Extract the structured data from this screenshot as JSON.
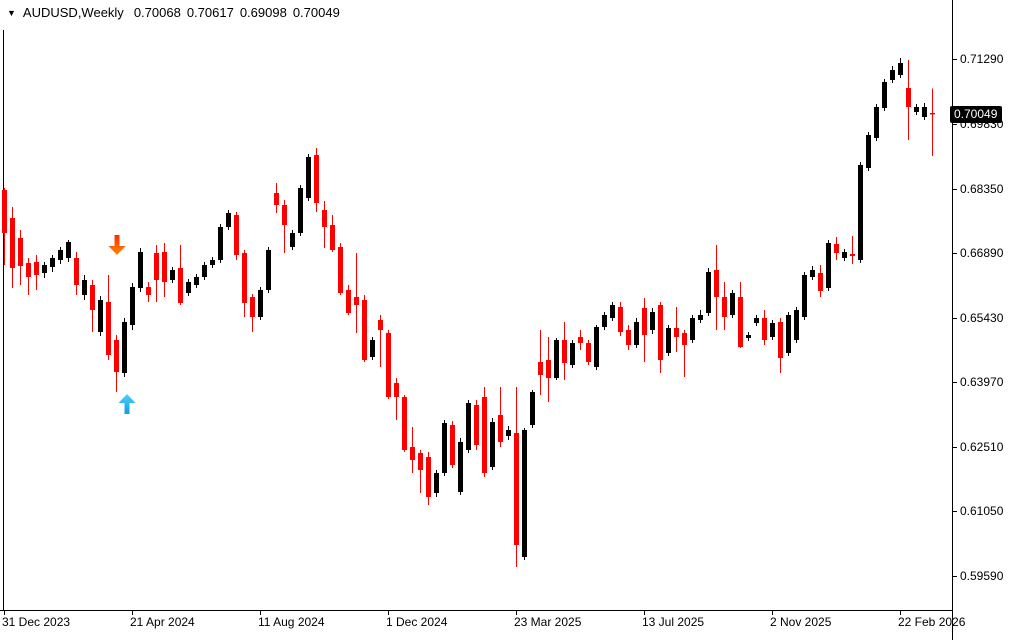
{
  "header": {
    "dropdown_glyph": "▼",
    "symbol_period": "AUDUSD,Weekly",
    "open": "0.70068",
    "high": "0.70617",
    "low": "0.69098",
    "close": "0.70049"
  },
  "price_axis": {
    "labels": [
      "0.71290",
      "0.69830",
      "0.68350",
      "0.66890",
      "0.65430",
      "0.63970",
      "0.62510",
      "0.61050",
      "0.59590"
    ],
    "current_price": "0.70049"
  },
  "time_axis": {
    "ticks": [
      {
        "label": "31 Dec 2023",
        "candle_index": 0
      },
      {
        "label": "21 Apr 2024",
        "candle_index": 16
      },
      {
        "label": "11 Aug 2024",
        "candle_index": 32
      },
      {
        "label": "1 Dec 2024",
        "candle_index": 48
      },
      {
        "label": "23 Mar 2025",
        "candle_index": 64
      },
      {
        "label": "13 Jul 2025",
        "candle_index": 80
      },
      {
        "label": "2 Nov 2025",
        "candle_index": 96
      },
      {
        "label": "22 Feb 2026",
        "candle_index": 112
      }
    ]
  },
  "colors": {
    "background": "#FFFFFF",
    "bull_candle": "#000000",
    "bear_candle": "#FF0000",
    "axis": "#000000",
    "arrow_down_top": "#FF2A00",
    "arrow_down_bottom": "#FF8A00",
    "arrow_up_top": "#4FD0F7",
    "arrow_up_bottom": "#0E9FE0",
    "price_tag_bg": "#000000",
    "price_tag_text": "#FFFFFF"
  },
  "chart_data": {
    "type": "candlestick",
    "title": "AUDUSD Weekly",
    "symbol": "AUDUSD",
    "timeframe": "Weekly",
    "legend_position": "none",
    "grid": false,
    "y_axis_side": "right",
    "y_axis_tick_prices": [
      0.7129,
      0.6983,
      0.6835,
      0.6689,
      0.6543,
      0.6397,
      0.6251,
      0.6105,
      0.5959
    ],
    "y_range_visible": [
      0.588,
      0.72
    ],
    "x_tick_labels": [
      "31 Dec 2023",
      "21 Apr 2024",
      "11 Aug 2024",
      "1 Dec 2024",
      "23 Mar 2025",
      "13 Jul 2025",
      "2 Nov 2025",
      "22 Feb 2026"
    ],
    "x_tick_candle_indices": [
      0,
      16,
      32,
      48,
      64,
      80,
      96,
      112
    ],
    "last_candle_ohlc": {
      "open": 0.70068,
      "high": 0.70617,
      "low": 0.69098,
      "close": 0.70049
    },
    "candles_format": [
      "open",
      "high",
      "low",
      "close"
    ],
    "candles": [
      [
        0.68325,
        0.6837,
        0.66628,
        0.67352
      ],
      [
        0.67691,
        0.6794,
        0.66108,
        0.6656
      ],
      [
        0.67239,
        0.6742,
        0.66176,
        0.66606
      ],
      [
        0.66673,
        0.66787,
        0.6595,
        0.66357
      ],
      [
        0.66696,
        0.66854,
        0.66063,
        0.66402
      ],
      [
        0.66447,
        0.66696,
        0.66334,
        0.66628
      ],
      [
        0.66583,
        0.66854,
        0.6647,
        0.66787
      ],
      [
        0.66741,
        0.67036,
        0.66651,
        0.66968
      ],
      [
        0.66787,
        0.67194,
        0.66696,
        0.67149
      ],
      [
        0.66787,
        0.66922,
        0.6595,
        0.66176
      ],
      [
        0.6595,
        0.66402,
        0.65837,
        0.66289
      ],
      [
        0.66176,
        0.66289,
        0.65112,
        0.65611
      ],
      [
        0.65112,
        0.65927,
        0.65021,
        0.65837
      ],
      [
        0.65791,
        0.66402,
        0.64478,
        0.64591
      ],
      [
        0.64931,
        0.65044,
        0.63754,
        0.64206
      ],
      [
        0.64184,
        0.65429,
        0.64093,
        0.65339
      ],
      [
        0.65271,
        0.66221,
        0.65157,
        0.6613
      ],
      [
        0.66108,
        0.67013,
        0.66018,
        0.66922
      ],
      [
        0.6613,
        0.66244,
        0.65791,
        0.6595
      ],
      [
        0.669,
        0.67081,
        0.65791,
        0.66289
      ],
      [
        0.66922,
        0.67126,
        0.65904,
        0.66244
      ],
      [
        0.66289,
        0.66583,
        0.66221,
        0.66515
      ],
      [
        0.6656,
        0.67081,
        0.65724,
        0.65769
      ],
      [
        0.65995,
        0.66312,
        0.65927,
        0.66244
      ],
      [
        0.66176,
        0.66425,
        0.66108,
        0.66357
      ],
      [
        0.66357,
        0.66696,
        0.66289,
        0.66628
      ],
      [
        0.66628,
        0.66809,
        0.6656,
        0.66741
      ],
      [
        0.66741,
        0.67556,
        0.66673,
        0.67488
      ],
      [
        0.67488,
        0.67872,
        0.6742,
        0.67805
      ],
      [
        0.67759,
        0.67827,
        0.66741,
        0.66854
      ],
      [
        0.669,
        0.66968,
        0.65452,
        0.65769
      ],
      [
        0.65904,
        0.65972,
        0.65112,
        0.65452
      ],
      [
        0.65452,
        0.6613,
        0.65384,
        0.66063
      ],
      [
        0.66063,
        0.67036,
        0.65995,
        0.66968
      ],
      [
        0.68257,
        0.68484,
        0.67805,
        0.67986
      ],
      [
        0.67986,
        0.68099,
        0.669,
        0.67533
      ],
      [
        0.67036,
        0.6742,
        0.66968,
        0.67352
      ],
      [
        0.67352,
        0.68438,
        0.67284,
        0.6837
      ],
      [
        0.68144,
        0.6914,
        0.68076,
        0.69072
      ],
      [
        0.69117,
        0.69276,
        0.67827,
        0.68031
      ],
      [
        0.67872,
        0.68076,
        0.67013,
        0.67488
      ],
      [
        0.67533,
        0.67759,
        0.66922,
        0.66968
      ],
      [
        0.67036,
        0.67126,
        0.6595,
        0.65995
      ],
      [
        0.66063,
        0.66176,
        0.65497,
        0.65543
      ],
      [
        0.65904,
        0.669,
        0.65089,
        0.65724
      ],
      [
        0.65837,
        0.6595,
        0.64433,
        0.64478
      ],
      [
        0.64546,
        0.64999,
        0.64478,
        0.64931
      ],
      [
        0.65384,
        0.65497,
        0.6432,
        0.65157
      ],
      [
        0.65089,
        0.65157,
        0.63595,
        0.63641
      ],
      [
        0.63958,
        0.64071,
        0.6312,
        0.63641
      ],
      [
        0.63641,
        0.63686,
        0.62395,
        0.6244
      ],
      [
        0.62508,
        0.62961,
        0.61919,
        0.62214
      ],
      [
        0.62372,
        0.6244,
        0.61467,
        0.61987
      ],
      [
        0.62282,
        0.62395,
        0.61195,
        0.61376
      ],
      [
        0.61467,
        0.61987,
        0.61376,
        0.61919
      ],
      [
        0.61919,
        0.6312,
        0.61852,
        0.63052
      ],
      [
        0.63007,
        0.63097,
        0.62033,
        0.62101
      ],
      [
        0.61489,
        0.62712,
        0.61421,
        0.62621
      ],
      [
        0.6244,
        0.63573,
        0.62372,
        0.63505
      ],
      [
        0.6346,
        0.63573,
        0.6244,
        0.62553
      ],
      [
        0.63641,
        0.63867,
        0.61829,
        0.61919
      ],
      [
        0.62055,
        0.63165,
        0.61987,
        0.63075
      ],
      [
        0.63233,
        0.63867,
        0.62508,
        0.62621
      ],
      [
        0.62757,
        0.62984,
        0.62667,
        0.62893
      ],
      [
        0.62825,
        0.63867,
        0.59792,
        0.6029
      ],
      [
        0.60018,
        0.62939,
        0.5995,
        0.62893
      ],
      [
        0.63007,
        0.63799,
        0.62939,
        0.63754
      ],
      [
        0.64433,
        0.65157,
        0.63686,
        0.64139
      ],
      [
        0.64478,
        0.64999,
        0.63528,
        0.64071
      ],
      [
        0.64071,
        0.64976,
        0.64025,
        0.64931
      ],
      [
        0.64931,
        0.65339,
        0.64025,
        0.6441
      ],
      [
        0.64365,
        0.64931,
        0.64297,
        0.64863
      ],
      [
        0.64999,
        0.65157,
        0.64705,
        0.64863
      ],
      [
        0.64863,
        0.64931,
        0.64365,
        0.64433
      ],
      [
        0.6432,
        0.65271,
        0.64252,
        0.65225
      ],
      [
        0.65225,
        0.65565,
        0.65157,
        0.65497
      ],
      [
        0.65429,
        0.65791,
        0.65361,
        0.65724
      ],
      [
        0.65678,
        0.65791,
        0.65021,
        0.65112
      ],
      [
        0.65157,
        0.65271,
        0.64705,
        0.64818
      ],
      [
        0.64818,
        0.65429,
        0.6475,
        0.65339
      ],
      [
        0.65656,
        0.65882,
        0.64433,
        0.65044
      ],
      [
        0.65157,
        0.65656,
        0.65067,
        0.65565
      ],
      [
        0.65724,
        0.65791,
        0.64184,
        0.64478
      ],
      [
        0.64637,
        0.65271,
        0.64569,
        0.65203
      ],
      [
        0.65203,
        0.65678,
        0.64659,
        0.64999
      ],
      [
        0.65089,
        0.65157,
        0.64093,
        0.64818
      ],
      [
        0.64931,
        0.65497,
        0.64863,
        0.65429
      ],
      [
        0.65384,
        0.65611,
        0.65316,
        0.65497
      ],
      [
        0.65543,
        0.6656,
        0.65475,
        0.6647
      ],
      [
        0.66515,
        0.67081,
        0.65157,
        0.65904
      ],
      [
        0.65904,
        0.66244,
        0.65157,
        0.65452
      ],
      [
        0.65497,
        0.66063,
        0.65429,
        0.65995
      ],
      [
        0.65904,
        0.66244,
        0.6475,
        0.64772
      ],
      [
        0.64976,
        0.65112,
        0.64908,
        0.65044
      ],
      [
        0.65316,
        0.65497,
        0.65248,
        0.65429
      ],
      [
        0.65429,
        0.65611,
        0.64818,
        0.64931
      ],
      [
        0.64999,
        0.65384,
        0.64931,
        0.65316
      ],
      [
        0.65339,
        0.65429,
        0.64184,
        0.64524
      ],
      [
        0.64637,
        0.65565,
        0.64569,
        0.65497
      ],
      [
        0.64931,
        0.65678,
        0.64863,
        0.65611
      ],
      [
        0.65452,
        0.6647,
        0.65384,
        0.66402
      ],
      [
        0.66357,
        0.66606,
        0.66289,
        0.66515
      ],
      [
        0.66447,
        0.66628,
        0.65904,
        0.6604
      ],
      [
        0.66108,
        0.67194,
        0.6604,
        0.67126
      ],
      [
        0.67104,
        0.67262,
        0.66741,
        0.669
      ],
      [
        0.66787,
        0.6699,
        0.66719,
        0.66922
      ],
      [
        0.66877,
        0.67284,
        0.66651,
        0.66832
      ],
      [
        0.66741,
        0.68959,
        0.66673,
        0.68891
      ],
      [
        0.68823,
        0.69638,
        0.68755,
        0.6957
      ],
      [
        0.69502,
        0.70272,
        0.69434,
        0.70204
      ],
      [
        0.70181,
        0.70837,
        0.70113,
        0.7077
      ],
      [
        0.70815,
        0.71132,
        0.70747,
        0.71041
      ],
      [
        0.70928,
        0.71313,
        0.7086,
        0.71199
      ],
      [
        0.70634,
        0.71267,
        0.69457,
        0.70204
      ],
      [
        0.70091,
        0.70272,
        0.70023,
        0.70204
      ],
      [
        0.69978,
        0.70294,
        0.6991,
        0.70204
      ],
      [
        0.70068,
        0.70617,
        0.69098,
        0.70049
      ]
    ],
    "annotations": [
      {
        "shape": "arrow-down",
        "candle_index": 14,
        "price": 0.67081
      },
      {
        "shape": "arrow-up",
        "candle_index": 15,
        "price": 0.63483
      }
    ]
  }
}
